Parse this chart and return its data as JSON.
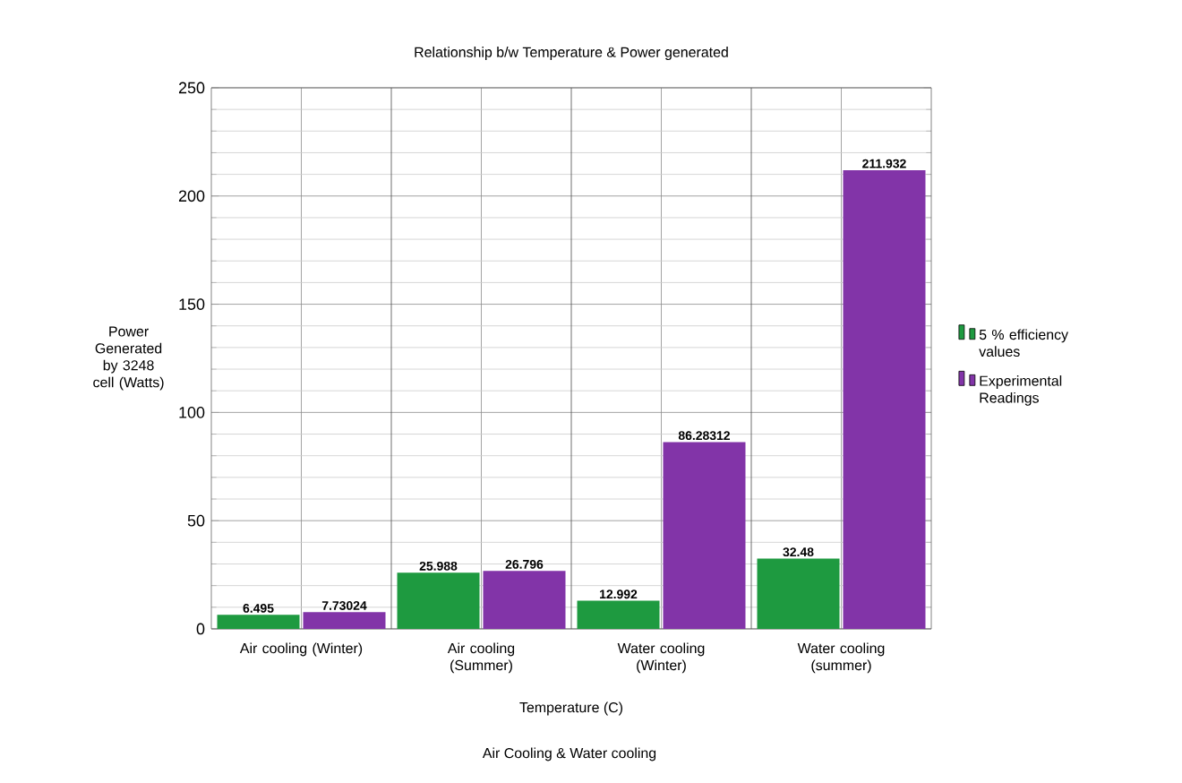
{
  "chart_data": {
    "type": "bar",
    "title": "Relationship b/w Temperature & Power generated",
    "categories": [
      "Air cooling (Winter)",
      "Air cooling (Summer)",
      "Water cooling (Winter)",
      "Water cooling (summer)"
    ],
    "xlabel": "Temperature (C)",
    "ylabel": "Power Generated by 3248 cell (Watts)",
    "series": [
      {
        "name": "5 % efficiency values",
        "color": "#1e9a40",
        "values": [
          6.495,
          25.988,
          12.992,
          32.48
        ],
        "value_labels": [
          "6.495",
          "25.988",
          "12.992",
          "32.48"
        ]
      },
      {
        "name": "Experimental Readings",
        "color": "#8234a8",
        "values": [
          7.73024,
          26.796,
          86.28312,
          211.932
        ],
        "value_labels": [
          "7.73024",
          "26.796",
          "86.28312",
          "211.932"
        ]
      }
    ],
    "ylim": [
      0,
      250
    ],
    "yticks": [
      0,
      50,
      100,
      150,
      200,
      250
    ],
    "grid": true,
    "legend": "right",
    "annotations": [
      "Air Cooling & Water cooling"
    ]
  }
}
